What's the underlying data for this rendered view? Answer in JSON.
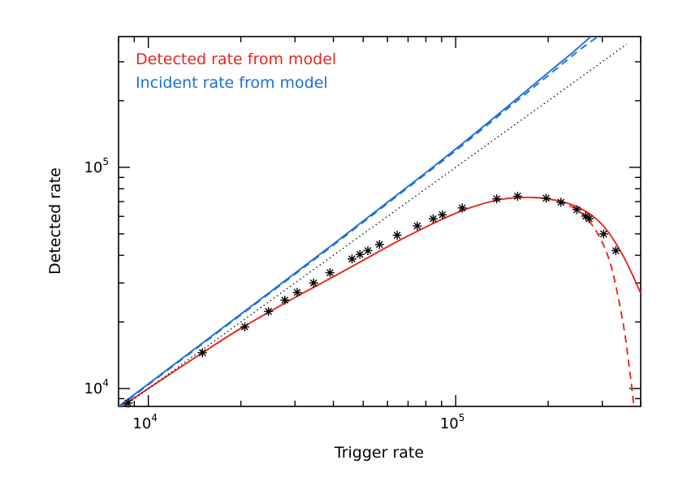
{
  "chart_data": {
    "type": "line",
    "xlabel": "Trigger rate",
    "ylabel": "Detected rate",
    "xscale": "log",
    "yscale": "log",
    "xlim": [
      8000,
      400000
    ],
    "ylim": [
      8300,
      390000
    ],
    "x_major_ticks": [
      {
        "value": 10000,
        "base": "10",
        "exp": "4"
      },
      {
        "value": 100000,
        "base": "10",
        "exp": "5"
      }
    ],
    "y_major_ticks": [
      {
        "value": 10000,
        "base": "10",
        "exp": "4"
      },
      {
        "value": 100000,
        "base": "10",
        "exp": "5"
      }
    ],
    "grid": false,
    "legend_position": "top-left",
    "legend": [
      {
        "label": "Detected rate from model",
        "color": "#e8251f"
      },
      {
        "label": "Incident rate from model",
        "color": "#1f6fd6"
      }
    ],
    "series": [
      {
        "label_ref": "Detected rate from model",
        "color": "#e8251f",
        "style": "solid",
        "points": [
          [
            8000,
            8100
          ],
          [
            10000,
            10000
          ],
          [
            15000,
            14500
          ],
          [
            20000,
            18700
          ],
          [
            30000,
            25800
          ],
          [
            40000,
            32000
          ],
          [
            50000,
            38000
          ],
          [
            70000,
            49000
          ],
          [
            100000,
            62000
          ],
          [
            130000,
            70000
          ],
          [
            160000,
            73000
          ],
          [
            200000,
            72000
          ],
          [
            250000,
            66000
          ],
          [
            300000,
            55000
          ],
          [
            350000,
            40000
          ],
          [
            400000,
            27000
          ]
        ]
      },
      {
        "color": "#e8251f",
        "style": "dashed",
        "points": [
          [
            180000,
            73000
          ],
          [
            200000,
            72000
          ],
          [
            230000,
            68000
          ],
          [
            260000,
            61000
          ],
          [
            290000,
            50000
          ],
          [
            320000,
            36000
          ],
          [
            350000,
            20000
          ],
          [
            370000,
            11500
          ],
          [
            380000,
            8300
          ]
        ]
      },
      {
        "label_ref": "Incident rate from model",
        "color": "#1f6fd6",
        "style": "solid",
        "points": [
          [
            8000,
            8300
          ],
          [
            10000,
            10500
          ],
          [
            20000,
            21700
          ],
          [
            40000,
            45000
          ],
          [
            70000,
            82000
          ],
          [
            100000,
            121000
          ],
          [
            150000,
            192000
          ],
          [
            200000,
            268000
          ],
          [
            240000,
            330000
          ],
          [
            275000,
            390000
          ]
        ]
      },
      {
        "color": "#1f6fd6",
        "style": "dashed",
        "points": [
          [
            8000,
            8200
          ],
          [
            10000,
            10400
          ],
          [
            20000,
            21500
          ],
          [
            40000,
            44500
          ],
          [
            70000,
            81000
          ],
          [
            100000,
            119000
          ],
          [
            150000,
            188000
          ],
          [
            200000,
            260000
          ],
          [
            250000,
            335000
          ],
          [
            290000,
            390000
          ]
        ]
      },
      {
        "color": "#000000",
        "style": "dotted",
        "points": [
          [
            8000,
            8000
          ],
          [
            360000,
            360000
          ]
        ]
      }
    ],
    "markers": {
      "symbol": "asterisk",
      "color": "#000000",
      "points": [
        [
          8600,
          8600
        ],
        [
          15000,
          14500
        ],
        [
          20600,
          19000
        ],
        [
          24600,
          22300
        ],
        [
          27800,
          25100
        ],
        [
          30500,
          27200
        ],
        [
          34500,
          30000
        ],
        [
          39000,
          33400
        ],
        [
          46000,
          38500
        ],
        [
          48800,
          40400
        ],
        [
          51800,
          42000
        ],
        [
          56500,
          44800
        ],
        [
          64500,
          49300
        ],
        [
          75000,
          54300
        ],
        [
          84500,
          58500
        ],
        [
          90500,
          61000
        ],
        [
          105000,
          65500
        ],
        [
          136000,
          72000
        ],
        [
          159000,
          74000
        ],
        [
          197000,
          72500
        ],
        [
          220000,
          69500
        ],
        [
          248000,
          64300
        ],
        [
          265000,
          60200
        ],
        [
          272000,
          58600
        ],
        [
          303000,
          50000
        ],
        [
          332000,
          42000
        ]
      ]
    }
  }
}
